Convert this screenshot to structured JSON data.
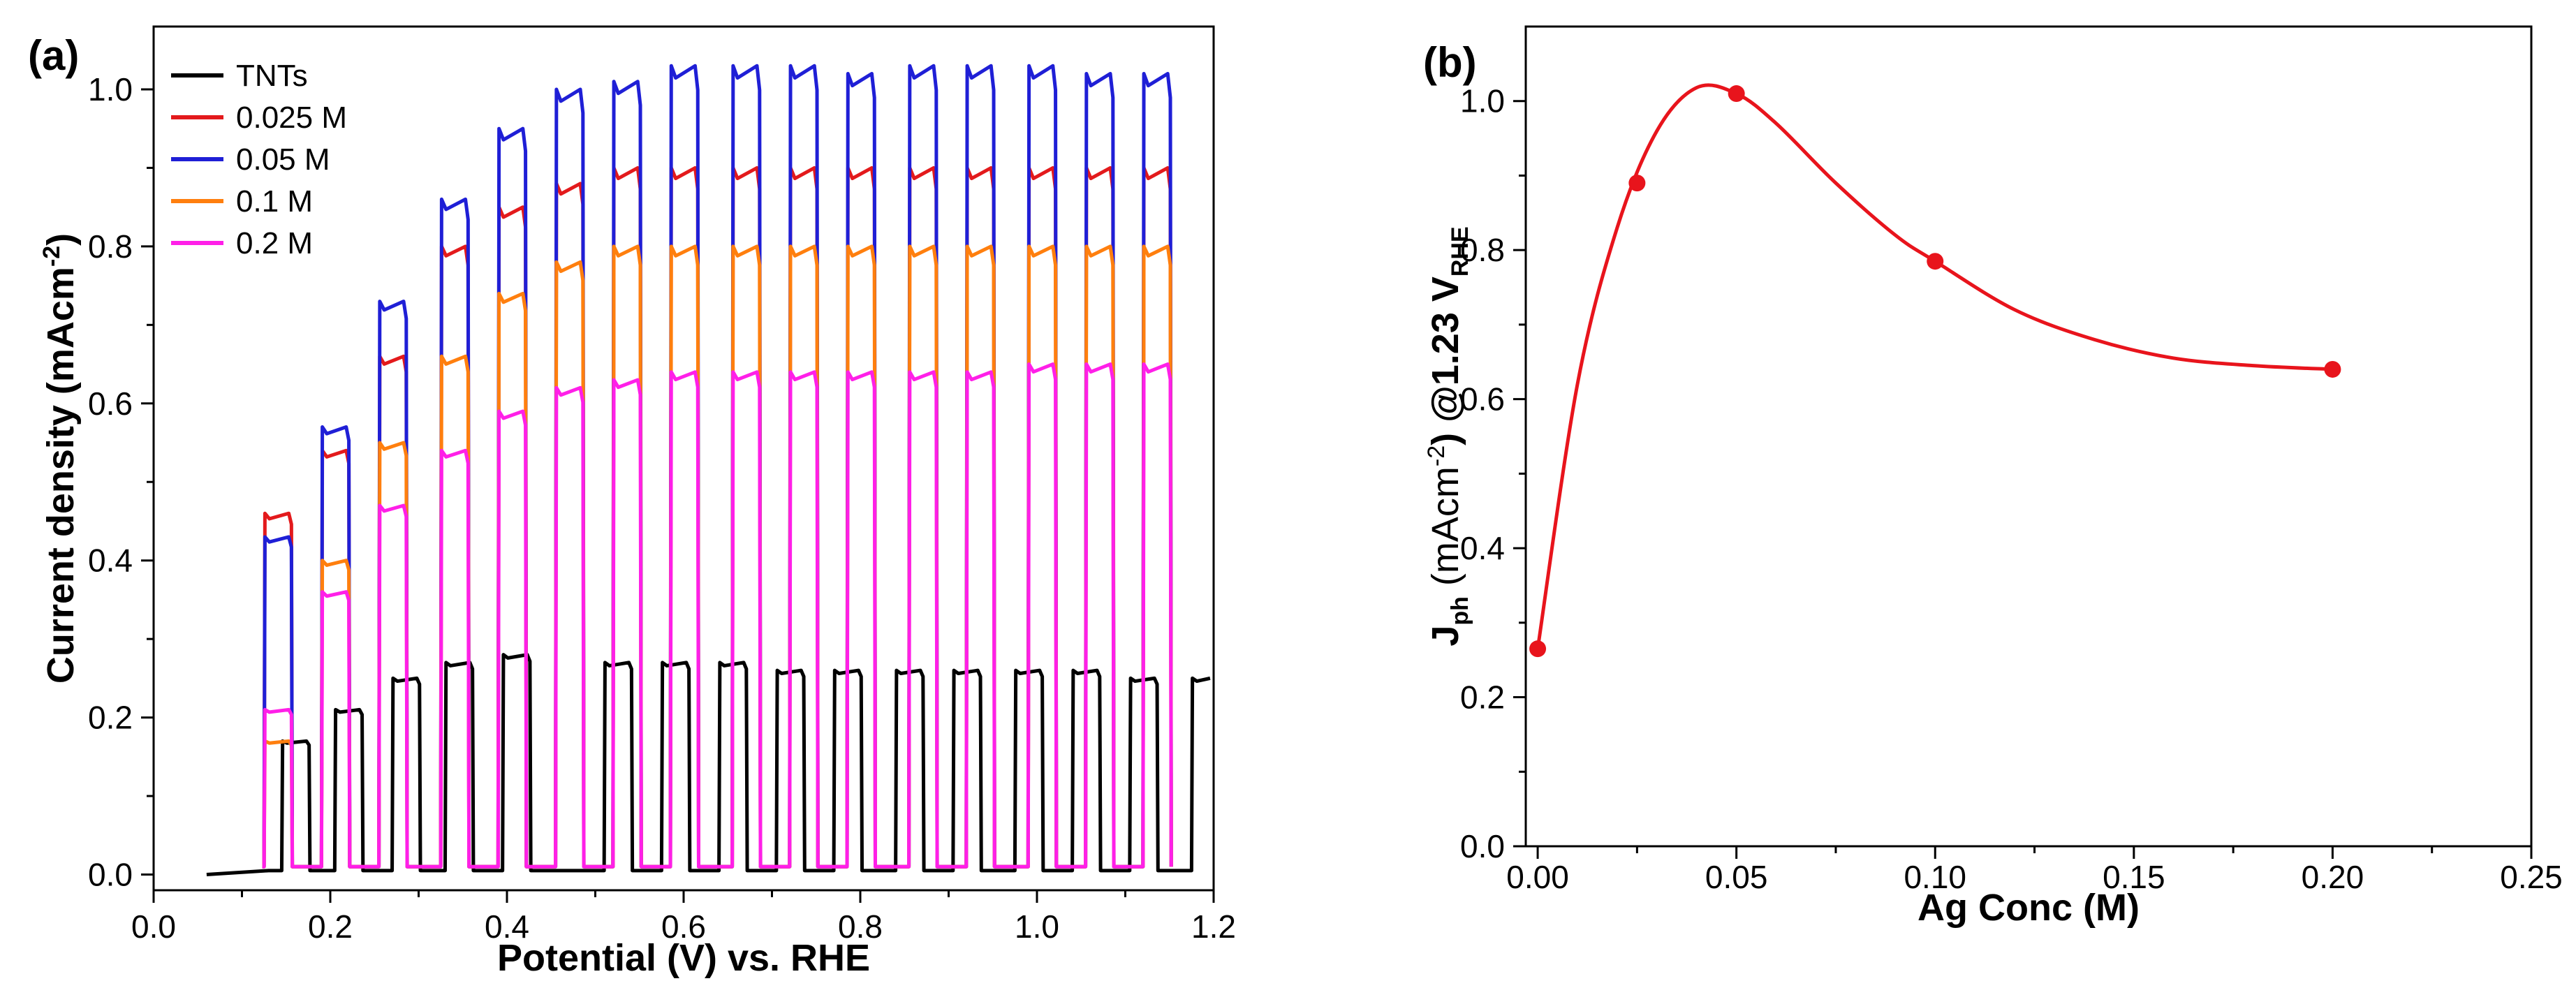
{
  "chart_data": [
    {
      "panel_label": "(a)",
      "type": "line",
      "xlabel": "Potential (V) vs. RHE",
      "ylabel": "Current density (mAcm",
      "ylabel_sup": "-2",
      "ylabel_close": ")",
      "xlim": [
        0.0,
        1.2
      ],
      "ylim": [
        -0.02,
        1.08
      ],
      "x_ticks": [
        0.0,
        0.2,
        0.4,
        0.6,
        0.8,
        1.0,
        1.2
      ],
      "x_tick_labels": [
        "0.0",
        "0.2",
        "0.4",
        "0.6",
        "0.8",
        "1.0",
        "1.2"
      ],
      "y_ticks": [
        0.0,
        0.2,
        0.4,
        0.6,
        0.8,
        1.0
      ],
      "y_tick_labels": [
        "0.0",
        "0.2",
        "0.4",
        "0.6",
        "0.8",
        "1.0"
      ],
      "legend_position": "top-left",
      "chopped_light": {
        "x_start": 0.06,
        "light_on_potentials": [
          0.125,
          0.19,
          0.255,
          0.325,
          0.39,
          0.455,
          0.52,
          0.585,
          0.655,
          0.72,
          0.785,
          0.855,
          0.92,
          0.99,
          1.055,
          1.12
        ],
        "on_duration": 0.032,
        "x_end": 1.2
      },
      "series": [
        {
          "name": "TNTs",
          "color": "#000000",
          "onset": 0.13,
          "dark_current": 0.005,
          "light_on_potentials": [
            0.145,
            0.205,
            0.27,
            0.33,
            0.395,
            0.51,
            0.575,
            0.64,
            0.705,
            0.77,
            0.84,
            0.905,
            0.975,
            1.04,
            1.105,
            1.175
          ],
          "photocurrents": [
            0.17,
            0.21,
            0.25,
            0.27,
            0.28,
            0.27,
            0.27,
            0.27,
            0.26,
            0.26,
            0.26,
            0.26,
            0.26,
            0.26,
            0.25,
            0.25
          ]
        },
        {
          "name": "0.025 M",
          "color": "#e31a1c",
          "dark_current": 0.01,
          "photocurrents": [
            0.46,
            0.54,
            0.66,
            0.8,
            0.85,
            0.88,
            0.9,
            0.9,
            0.9,
            0.9,
            0.9,
            0.9,
            0.9,
            0.9,
            0.9,
            0.9
          ]
        },
        {
          "name": "0.05 M",
          "color": "#1f1fd6",
          "dark_current": 0.01,
          "photocurrents": [
            0.43,
            0.57,
            0.73,
            0.86,
            0.95,
            1.0,
            1.01,
            1.03,
            1.03,
            1.03,
            1.02,
            1.03,
            1.03,
            1.03,
            1.02,
            1.02
          ]
        },
        {
          "name": "0.1 M",
          "color": "#ff7f0e",
          "dark_current": 0.01,
          "photocurrents": [
            0.17,
            0.4,
            0.55,
            0.66,
            0.74,
            0.78,
            0.8,
            0.8,
            0.8,
            0.8,
            0.8,
            0.8,
            0.8,
            0.8,
            0.8,
            0.8
          ]
        },
        {
          "name": "0.2 M",
          "color": "#ff1fe8",
          "dark_current": 0.01,
          "photocurrents": [
            0.21,
            0.36,
            0.47,
            0.54,
            0.59,
            0.62,
            0.63,
            0.64,
            0.64,
            0.64,
            0.64,
            0.64,
            0.64,
            0.65,
            0.65,
            0.65
          ]
        }
      ]
    },
    {
      "panel_label": "(b)",
      "type": "scatter",
      "xlabel": "Ag Conc (M)",
      "ylabel_parts": {
        "j": "J",
        "j_sub": "ph",
        "unit_open": " (mAcm",
        "unit_sup": "-2",
        "unit_close": ") @1.23 V",
        "v_sub": "RHE"
      },
      "xlim": [
        -0.003,
        0.25
      ],
      "ylim": [
        0.0,
        1.1
      ],
      "x_ticks": [
        0.0,
        0.05,
        0.1,
        0.15,
        0.2,
        0.25
      ],
      "x_tick_labels": [
        "0.00",
        "0.05",
        "0.10",
        "0.15",
        "0.20",
        "0.25"
      ],
      "y_ticks": [
        0.0,
        0.2,
        0.4,
        0.6,
        0.8,
        1.0
      ],
      "y_tick_labels": [
        "0.0",
        "0.2",
        "0.4",
        "0.6",
        "0.8",
        "1.0"
      ],
      "color": "#e8141c",
      "points": [
        {
          "x": 0.0,
          "y": 0.265
        },
        {
          "x": 0.025,
          "y": 0.89
        },
        {
          "x": 0.05,
          "y": 1.01
        },
        {
          "x": 0.1,
          "y": 0.785
        },
        {
          "x": 0.2,
          "y": 0.64
        }
      ],
      "fit_curve": [
        {
          "x": 0.0,
          "y": 0.265
        },
        {
          "x": 0.01,
          "y": 0.62
        },
        {
          "x": 0.02,
          "y": 0.83
        },
        {
          "x": 0.03,
          "y": 0.96
        },
        {
          "x": 0.04,
          "y": 1.018
        },
        {
          "x": 0.05,
          "y": 1.01
        },
        {
          "x": 0.06,
          "y": 0.97
        },
        {
          "x": 0.075,
          "y": 0.89
        },
        {
          "x": 0.09,
          "y": 0.82
        },
        {
          "x": 0.1,
          "y": 0.785
        },
        {
          "x": 0.12,
          "y": 0.72
        },
        {
          "x": 0.14,
          "y": 0.68
        },
        {
          "x": 0.16,
          "y": 0.655
        },
        {
          "x": 0.18,
          "y": 0.645
        },
        {
          "x": 0.2,
          "y": 0.64
        }
      ]
    }
  ]
}
